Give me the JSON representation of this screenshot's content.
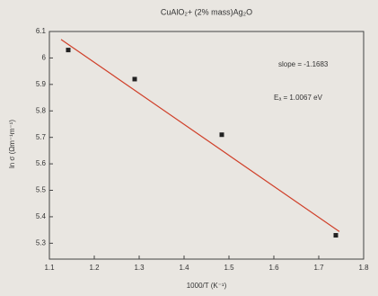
{
  "chart_data": {
    "type": "scatter",
    "title": "CuAlO₂+ (2% mass)Ag₂O",
    "xlabel": "1000/T (K⁻¹)",
    "ylabel": "ln σ (Ωm⁻¹m⁻¹)",
    "annotations": [
      "slope = -1.1683",
      "Eₐ = 1.0067 eV"
    ],
    "x": [
      1.142,
      1.29,
      1.484,
      1.738
    ],
    "values": [
      6.03,
      5.92,
      5.71,
      5.33
    ],
    "color": "#222222",
    "fit_line": {
      "x": [
        1.126,
        1.746
      ],
      "values": [
        6.07,
        5.344
      ],
      "color": "#d0402a"
    },
    "xlim": [
      1.1,
      1.8
    ],
    "xticks": [
      1.1,
      1.2,
      1.3,
      1.4,
      1.5,
      1.6,
      1.7,
      1.8
    ],
    "ylim": [
      5.24,
      6.1
    ],
    "yticks": [
      5.3,
      5.4,
      5.5,
      5.6,
      5.7,
      5.8,
      5.9,
      6.0,
      6.1
    ]
  }
}
